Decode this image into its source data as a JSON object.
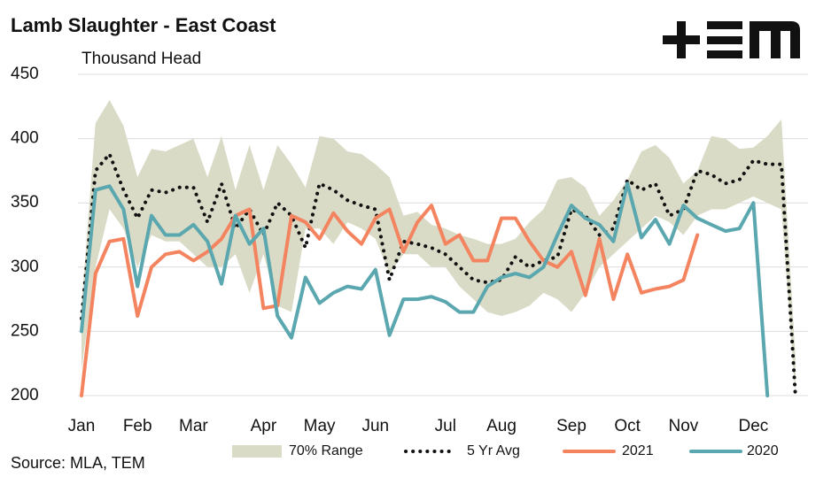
{
  "chart_data": {
    "type": "line",
    "title": "Lamb Slaughter - East Coast",
    "subtitle": "Thousand Head",
    "source": "Source: MLA, TEM",
    "categories": [
      "Jan",
      null,
      null,
      null,
      "Feb",
      null,
      null,
      null,
      "Mar",
      null,
      null,
      null,
      null,
      "Apr",
      null,
      null,
      null,
      "May",
      null,
      null,
      null,
      "Jun",
      null,
      null,
      null,
      null,
      "Jul",
      null,
      null,
      null,
      "Aug",
      null,
      null,
      null,
      null,
      "Sep",
      null,
      null,
      null,
      "Oct",
      null,
      null,
      null,
      "Nov",
      null,
      null,
      null,
      null,
      "Dec",
      null,
      null,
      null
    ],
    "ylim": [
      200,
      450
    ],
    "yticks": [
      200,
      250,
      300,
      350,
      400,
      450
    ],
    "grid": true,
    "range": {
      "name": "70% Range",
      "color": "#d9dbc6",
      "high": [
        270,
        412,
        430,
        410,
        370,
        392,
        390,
        395,
        400,
        370,
        402,
        360,
        395,
        360,
        395,
        380,
        362,
        402,
        400,
        390,
        388,
        380,
        370,
        340,
        343,
        333,
        330,
        325,
        322,
        318,
        318,
        322,
        335,
        345,
        368,
        370,
        362,
        340,
        352,
        368,
        390,
        395,
        385,
        365,
        375,
        402,
        400,
        392,
        393,
        402,
        415,
        230
      ],
      "low": [
        220,
        300,
        345,
        330,
        300,
        325,
        320,
        320,
        310,
        300,
        300,
        310,
        280,
        310,
        270,
        265,
        330,
        330,
        318,
        335,
        330,
        322,
        295,
        310,
        310,
        300,
        300,
        285,
        275,
        265,
        262,
        265,
        270,
        280,
        275,
        265,
        280,
        300,
        310,
        320,
        330,
        340,
        335,
        325,
        340,
        345,
        345,
        350,
        355,
        350,
        345,
        200
      ]
    },
    "series": [
      {
        "name": "5 Yr Avg",
        "color": "#111111",
        "style": "dotted",
        "values": [
          260,
          375,
          388,
          360,
          338,
          360,
          358,
          362,
          362,
          335,
          365,
          330,
          345,
          325,
          350,
          340,
          315,
          365,
          360,
          352,
          348,
          345,
          290,
          320,
          318,
          315,
          310,
          300,
          290,
          288,
          290,
          308,
          300,
          305,
          308,
          345,
          340,
          325,
          330,
          368,
          360,
          365,
          340,
          345,
          375,
          372,
          365,
          368,
          383,
          380,
          380,
          200
        ]
      },
      {
        "name": "2021",
        "color": "#f4845f",
        "style": "solid",
        "values": [
          200,
          295,
          320,
          322,
          262,
          300,
          310,
          312,
          305,
          312,
          322,
          340,
          345,
          268,
          270,
          340,
          335,
          322,
          342,
          328,
          318,
          338,
          345,
          312,
          335,
          348,
          318,
          325,
          305,
          305,
          338,
          338,
          320,
          305,
          300,
          312,
          278,
          322,
          275,
          310,
          280,
          283,
          285,
          290,
          325,
          null,
          null,
          null,
          null,
          null,
          null,
          null
        ]
      },
      {
        "name": "2020",
        "color": "#5ba7af",
        "style": "solid",
        "values": [
          250,
          360,
          363,
          345,
          285,
          340,
          325,
          325,
          333,
          320,
          287,
          340,
          318,
          330,
          262,
          245,
          292,
          272,
          280,
          285,
          283,
          298,
          247,
          275,
          275,
          277,
          273,
          265,
          265,
          285,
          292,
          295,
          292,
          300,
          325,
          348,
          338,
          333,
          320,
          365,
          323,
          337,
          318,
          348,
          338,
          333,
          328,
          330,
          350,
          200,
          null,
          null
        ]
      }
    ]
  }
}
